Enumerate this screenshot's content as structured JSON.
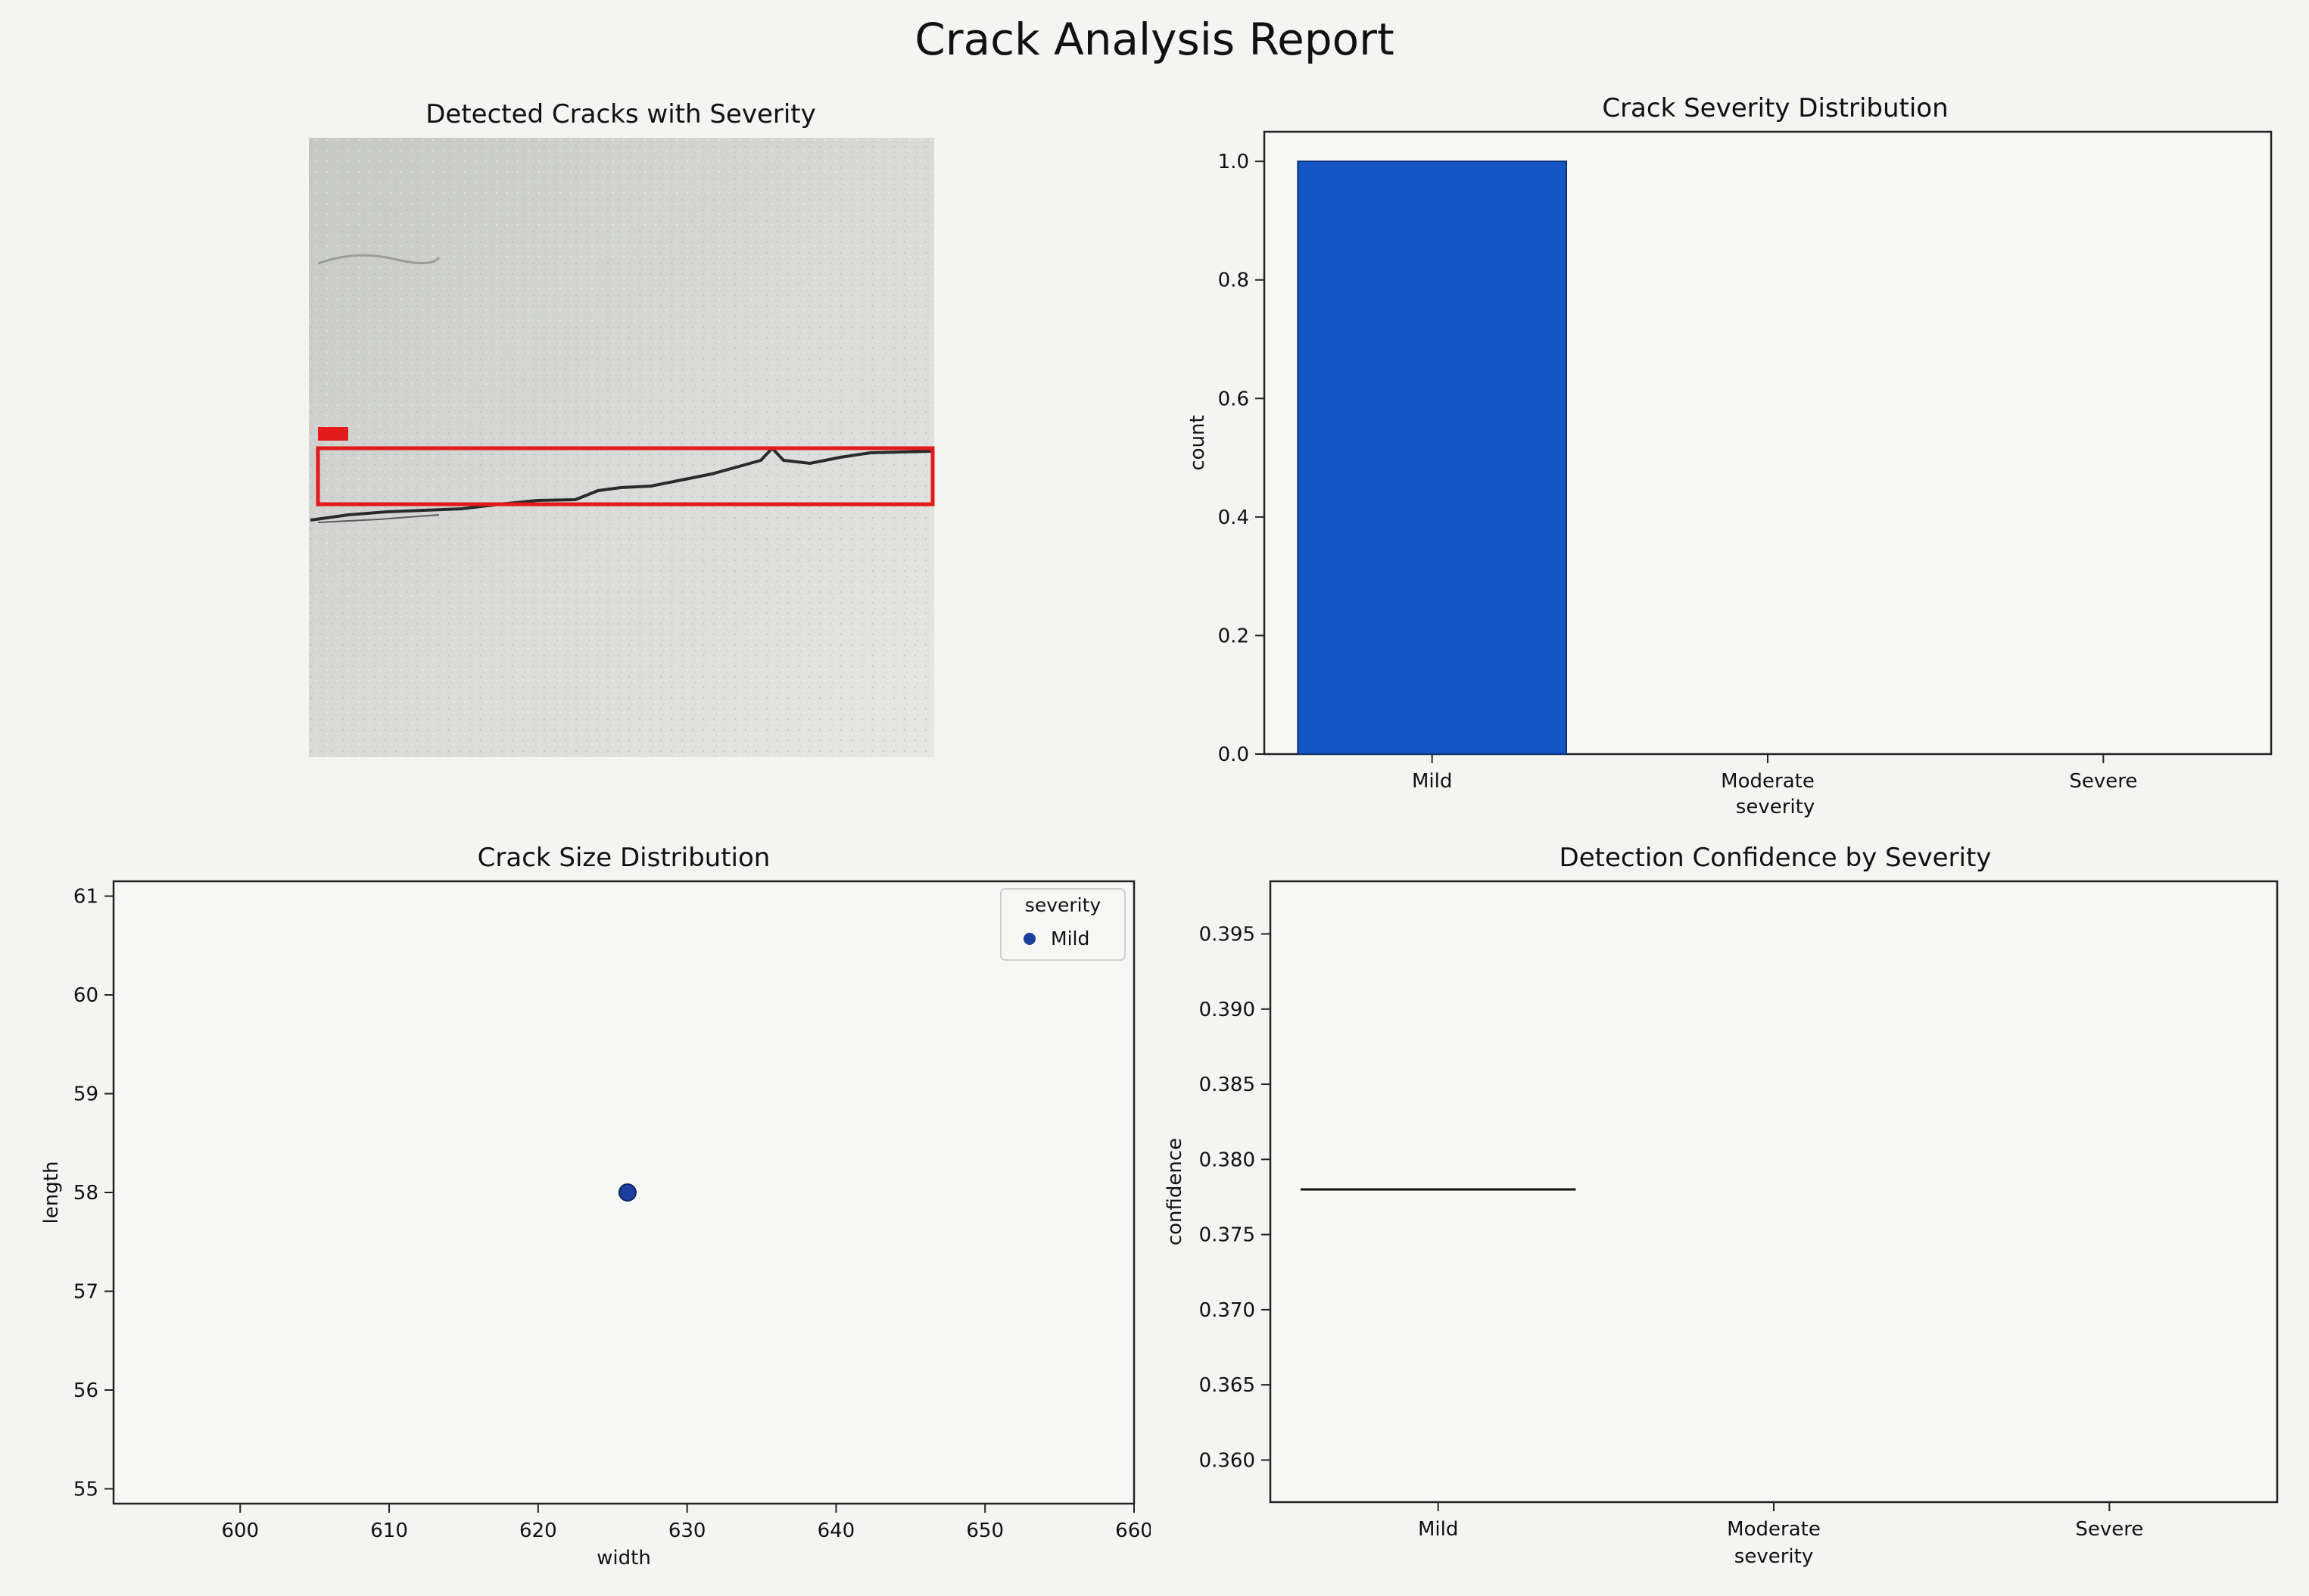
{
  "figure": {
    "title": "Crack Analysis Report"
  },
  "image_panel": {
    "title": "Detected Cracks with Severity",
    "box_color": "#e31a1c"
  },
  "colors": {
    "bar": "#1456c4",
    "point": "#1c3f9e",
    "line": "#111111"
  },
  "chart_data": [
    {
      "type": "bar",
      "title": "Crack Severity Distribution",
      "categories": [
        "Mild",
        "Moderate",
        "Severe"
      ],
      "values": [
        1,
        0,
        0
      ],
      "xlabel": "severity",
      "ylabel": "count",
      "ylim": [
        0,
        1.05
      ],
      "yticks": [
        0.0,
        0.2,
        0.4,
        0.6,
        0.8,
        1.0
      ],
      "ytick_labels": [
        "0.0",
        "0.2",
        "0.4",
        "0.6",
        "0.8",
        "1.0"
      ],
      "grid": false
    },
    {
      "type": "scatter",
      "title": "Crack Size Distribution",
      "x": [
        626
      ],
      "y": [
        58
      ],
      "series": [
        {
          "name": "Mild",
          "x": [
            626
          ],
          "y": [
            58
          ]
        }
      ],
      "xlabel": "width",
      "ylabel": "length",
      "xlim": [
        591.5,
        660
      ],
      "ylim": [
        54.85,
        61.15
      ],
      "xticks": [
        600,
        610,
        620,
        630,
        640,
        650,
        660
      ],
      "xtick_labels": [
        "600",
        "610",
        "620",
        "630",
        "640",
        "650",
        "660"
      ],
      "yticks": [
        55,
        56,
        57,
        58,
        59,
        60,
        61
      ],
      "ytick_labels": [
        "55",
        "56",
        "57",
        "58",
        "59",
        "60",
        "61"
      ],
      "legend": {
        "title": "severity",
        "entries": [
          "Mild"
        ],
        "placement": "top-right"
      },
      "grid": false
    },
    {
      "type": "box",
      "title": "Detection Confidence by Severity",
      "categories": [
        "Mild",
        "Moderate",
        "Severe"
      ],
      "values": [
        0.378,
        null,
        null
      ],
      "xlabel": "severity",
      "ylabel": "confidence",
      "ylim": [
        0.3572,
        0.3985
      ],
      "yticks": [
        0.36,
        0.365,
        0.37,
        0.375,
        0.38,
        0.385,
        0.39,
        0.395
      ],
      "ytick_labels": [
        "0.360",
        "0.365",
        "0.370",
        "0.375",
        "0.380",
        "0.385",
        "0.390",
        "0.395"
      ],
      "grid": false
    }
  ]
}
